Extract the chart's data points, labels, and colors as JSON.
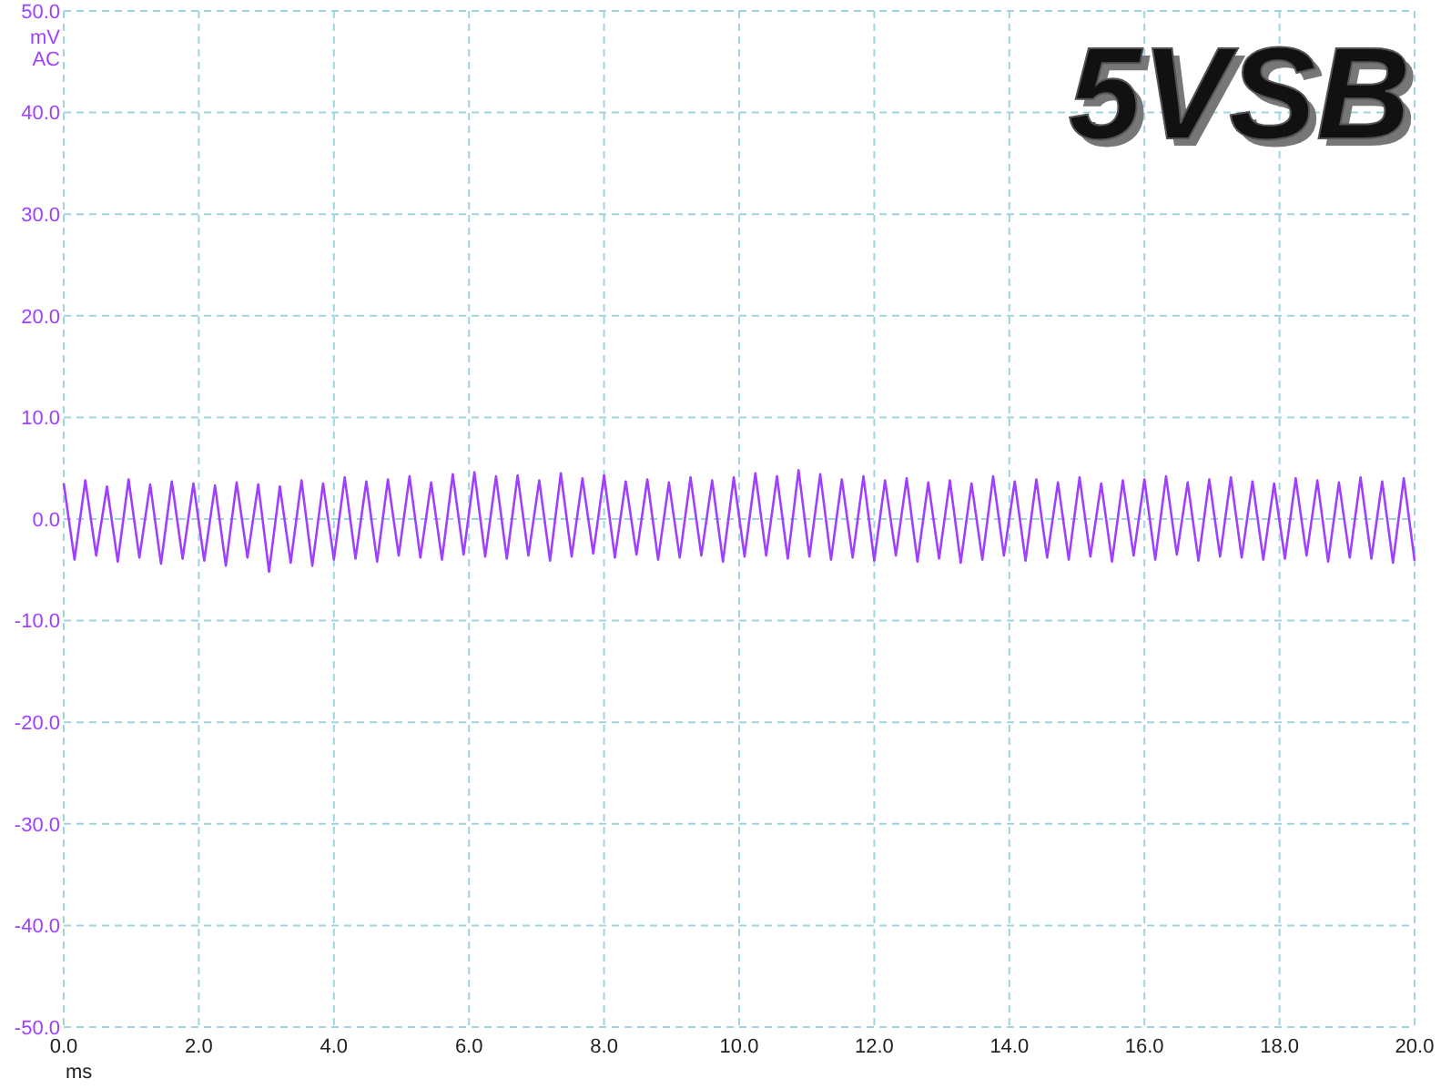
{
  "chart_data": {
    "type": "line",
    "title": "5VSB",
    "xlabel": "ms",
    "ylabel": "mV AC",
    "x": [
      0,
      0.16,
      0.32,
      0.48,
      0.64,
      0.8,
      0.96,
      1.12,
      1.28,
      1.44,
      1.6,
      1.76,
      1.92,
      2.08,
      2.24,
      2.4,
      2.56,
      2.72,
      2.88,
      3.04,
      3.2,
      3.36,
      3.52,
      3.68,
      3.84,
      4,
      4.16,
      4.32,
      4.48,
      4.64,
      4.8,
      4.96,
      5.12,
      5.28,
      5.44,
      5.6,
      5.76,
      5.92,
      6.08,
      6.24,
      6.4,
      6.56,
      6.72,
      6.88,
      7.04,
      7.2,
      7.36,
      7.52,
      7.68,
      7.84,
      8,
      8.16,
      8.32,
      8.48,
      8.64,
      8.8,
      8.96,
      9.12,
      9.28,
      9.44,
      9.6,
      9.76,
      9.92,
      10.08,
      10.24,
      10.4,
      10.56,
      10.72,
      10.88,
      11.04,
      11.2,
      11.36,
      11.52,
      11.68,
      11.84,
      12,
      12.16,
      12.32,
      12.48,
      12.64,
      12.8,
      12.96,
      13.12,
      13.28,
      13.44,
      13.6,
      13.76,
      13.92,
      14.08,
      14.24,
      14.4,
      14.56,
      14.72,
      14.88,
      15.04,
      15.2,
      15.36,
      15.52,
      15.68,
      15.84,
      16,
      16.16,
      16.32,
      16.48,
      16.64,
      16.8,
      16.96,
      17.12,
      17.28,
      17.44,
      17.6,
      17.76,
      17.92,
      18.08,
      18.24,
      18.4,
      18.56,
      18.72,
      18.88,
      19.04,
      19.2,
      19.36,
      19.52,
      19.68,
      19.84,
      20
    ],
    "series": [
      {
        "color": "#a040ff",
        "values": [
          3.5,
          -4,
          3.8,
          -3.6,
          3.2,
          -4.2,
          3.9,
          -3.8,
          3.4,
          -4.4,
          3.7,
          -3.9,
          3.5,
          -4.1,
          3.3,
          -4.6,
          3.6,
          -3.8,
          3.4,
          -5.2,
          3.2,
          -4.3,
          3.8,
          -4.6,
          3.5,
          -4,
          4.1,
          -3.9,
          3.7,
          -4.2,
          3.9,
          -3.6,
          4.2,
          -3.8,
          3.6,
          -4,
          4.4,
          -3.5,
          4.6,
          -3.7,
          4.2,
          -3.9,
          4.3,
          -3.6,
          3.8,
          -4.1,
          4.5,
          -3.7,
          4,
          -3.4,
          4.3,
          -3.8,
          3.7,
          -3.5,
          3.9,
          -4,
          3.6,
          -3.8,
          4.1,
          -3.6,
          3.8,
          -4.2,
          4.1,
          -3.7,
          4.5,
          -3.6,
          4.2,
          -3.9,
          4.8,
          -3.7,
          4.4,
          -4,
          3.9,
          -3.8,
          4.2,
          -4.1,
          3.8,
          -3.6,
          4,
          -4.2,
          3.6,
          -3.9,
          3.8,
          -4.3,
          3.5,
          -4,
          4.2,
          -3.6,
          3.7,
          -4.1,
          3.9,
          -3.8,
          3.6,
          -4,
          4.1,
          -3.7,
          3.5,
          -4.2,
          3.8,
          -3.6,
          3.9,
          -4,
          4.2,
          -3.5,
          3.6,
          -4.1,
          3.9,
          -3.7,
          4.1,
          -3.8,
          3.7,
          -4,
          3.5,
          -3.9,
          4,
          -3.6,
          3.8,
          -4.2,
          3.6,
          -3.8,
          4.1,
          -3.9,
          3.7,
          -4.3,
          4,
          -4.1
        ]
      }
    ],
    "xlim": [
      0,
      20
    ],
    "xticks": [
      {
        "value": 0,
        "label": "0.0"
      },
      {
        "value": 2,
        "label": "2.0"
      },
      {
        "value": 4,
        "label": "4.0"
      },
      {
        "value": 6,
        "label": "6.0"
      },
      {
        "value": 8,
        "label": "8.0"
      },
      {
        "value": 10,
        "label": "10.0"
      },
      {
        "value": 12,
        "label": "12.0"
      },
      {
        "value": 14,
        "label": "14.0"
      },
      {
        "value": 16,
        "label": "16.0"
      },
      {
        "value": 18,
        "label": "18.0"
      },
      {
        "value": 20,
        "label": "20.0"
      }
    ],
    "ylim": [
      -50,
      50
    ],
    "yticks": [
      {
        "value": -50,
        "label": "-50.0"
      },
      {
        "value": -40,
        "label": "-40.0"
      },
      {
        "value": -30,
        "label": "-30.0"
      },
      {
        "value": -20,
        "label": "-20.0"
      },
      {
        "value": -10,
        "label": "-10.0"
      },
      {
        "value": 0,
        "label": "0.0"
      },
      {
        "value": 10,
        "label": "10.0"
      },
      {
        "value": 20,
        "label": "20.0"
      },
      {
        "value": 30,
        "label": "30.0"
      },
      {
        "value": 40,
        "label": "40.0"
      },
      {
        "value": 50,
        "label": "50.0"
      }
    ],
    "grid": true,
    "line_style": "solid"
  }
}
